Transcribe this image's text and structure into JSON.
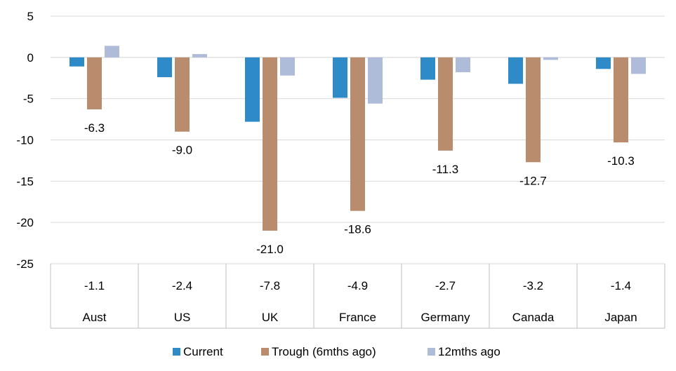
{
  "chart_data": {
    "type": "bar",
    "title": "",
    "xlabel": "",
    "ylabel": "",
    "ylim": [
      -25,
      5
    ],
    "yticks": [
      5,
      0,
      -5,
      -10,
      -15,
      -20,
      -25
    ],
    "grid": true,
    "legend_position": "bottom",
    "categories": [
      "Aust",
      "US",
      "UK",
      "France",
      "Germany",
      "Canada",
      "Japan"
    ],
    "series": [
      {
        "name": "Current",
        "color": "#2e8bc8",
        "values": [
          -1.1,
          -2.4,
          -7.8,
          -4.9,
          -2.7,
          -3.2,
          -1.4
        ],
        "labels": [
          "-1.1",
          "-2.4",
          "-7.8",
          "-4.9",
          "-2.7",
          "-3.2",
          "-1.4"
        ],
        "label_location": "table"
      },
      {
        "name": "Trough (6mths ago)",
        "color": "#b98c6e",
        "values": [
          -6.3,
          -9.0,
          -21.0,
          -18.6,
          -11.3,
          -12.7,
          -10.3
        ],
        "labels": [
          "-6.3",
          "-9.0",
          "-21.0",
          "-18.6",
          "-11.3",
          "-12.7",
          "-10.3"
        ],
        "label_location": "below-bar"
      },
      {
        "name": "12mths ago",
        "color": "#aebcd9",
        "values": [
          1.4,
          0.4,
          -2.2,
          -5.6,
          -1.8,
          -0.3,
          -2.0
        ]
      }
    ]
  }
}
